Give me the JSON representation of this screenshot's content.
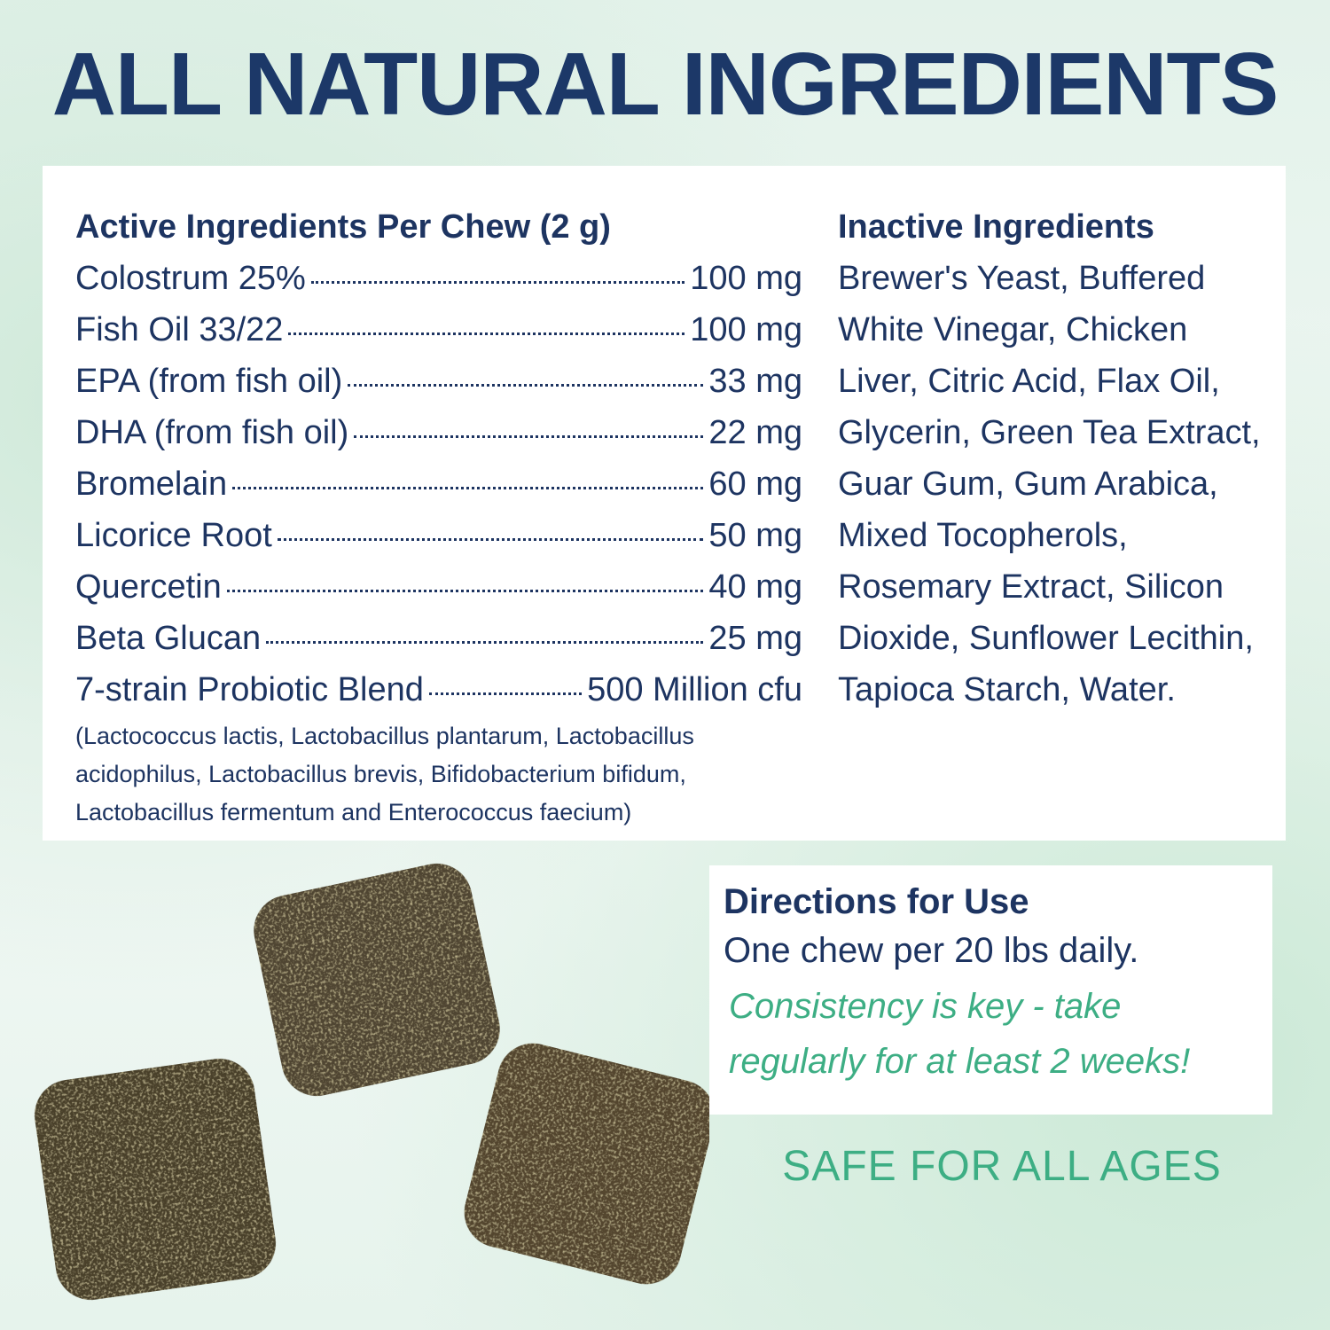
{
  "title": "ALL NATURAL INGREDIENTS",
  "active": {
    "heading": "Active Ingredients Per Chew (2 g)",
    "items": [
      {
        "name": "Colostrum 25%",
        "amount": "100 mg"
      },
      {
        "name": "Fish Oil 33/22",
        "amount": "100 mg"
      },
      {
        "name": "EPA (from fish oil)",
        "amount": "33 mg"
      },
      {
        "name": "DHA (from fish oil)",
        "amount": "22 mg"
      },
      {
        "name": "Bromelain",
        "amount": "60 mg"
      },
      {
        "name": "Licorice Root",
        "amount": "50 mg"
      },
      {
        "name": "Quercetin",
        "amount": "40 mg"
      },
      {
        "name": "Beta Glucan",
        "amount": "25 mg"
      },
      {
        "name": "7-strain Probiotic Blend",
        "amount": "500 Million cfu"
      }
    ],
    "note": "(Lactococcus lactis, Lactobacillus plantarum, Lactobacillus acidophilus, Lactobacillus brevis, Bifidobacterium bifidum, Lactobacillus fermentum and Enterococcus faecium)"
  },
  "inactive": {
    "heading": "Inactive Ingredients",
    "text": "Brewer's Yeast, Buffered White Vinegar, Chicken Liver, Citric Acid, Flax Oil, Glycerin, Green Tea Extract, Guar Gum, Gum Arabica, Mixed Tocopherols, Rosemary Extract, Silicon Dioxide, Sunflower Lecithin, Tapioca Starch, Water."
  },
  "directions": {
    "heading": "Directions for Use",
    "text": "One chew per 20 lbs daily.",
    "emphasis": "Consistency is key - take regularly for at least 2 weeks!"
  },
  "badge": "SAFE FOR ALL AGES"
}
